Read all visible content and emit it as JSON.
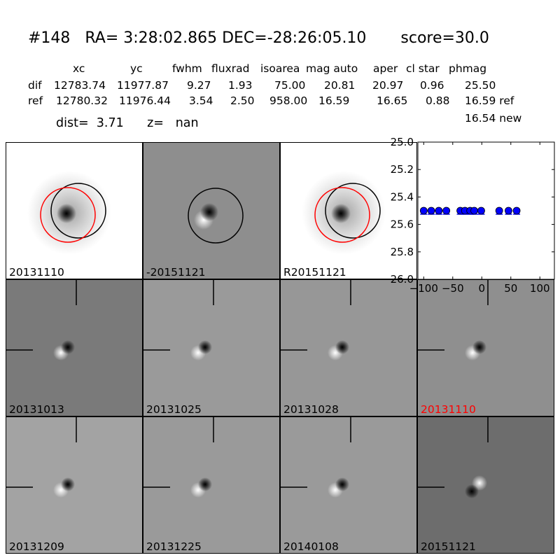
{
  "header": {
    "title": "#148   RA= 3:28:02.865 DEC=-28:26:05.10       score=30.0",
    "columns": [
      "xc",
      "yc",
      "fwhm",
      "fluxrad",
      "isoarea",
      "mag auto",
      "aper",
      "cl star",
      "phmag"
    ],
    "dif_row": {
      "label": "dif",
      "values": [
        "12783.74",
        "11977.87",
        "9.27",
        "1.93",
        "75.00",
        "20.81",
        "20.97",
        "0.96",
        "25.50"
      ]
    },
    "ref_row": {
      "label": "ref",
      "values": [
        "12780.32",
        "11976.44",
        "3.54",
        "2.50",
        "958.00",
        "16.59",
        "16.65",
        "0.88",
        "16.59 ref"
      ]
    },
    "phmag_new": "16.54 new",
    "dist_label": "dist=",
    "dist_value": "3.71",
    "z_label": "z=",
    "z_value": "nan"
  },
  "panels": [
    {
      "label": "20131110",
      "kind": "ref",
      "bg": "#ffffff",
      "label_color": "#000000"
    },
    {
      "label": "-20151121",
      "kind": "dif",
      "bg": "#8e8e8e",
      "label_color": "#000000"
    },
    {
      "label": "R20151121",
      "kind": "ref2",
      "bg": "#ffffff",
      "label_color": "#000000"
    },
    {
      "label": "20131013",
      "kind": "cut",
      "bg": "#7a7a7a",
      "label_color": "#000000"
    },
    {
      "label": "20131025",
      "kind": "cut",
      "bg": "#9a9a9a",
      "label_color": "#000000"
    },
    {
      "label": "20131028",
      "kind": "cut",
      "bg": "#979797",
      "label_color": "#000000"
    },
    {
      "label": "20131110",
      "kind": "cut",
      "bg": "#8f8f8f",
      "label_color": "#ff0000"
    },
    {
      "label": "20131209",
      "kind": "cut",
      "bg": "#a3a3a3",
      "label_color": "#000000"
    },
    {
      "label": "20131225",
      "kind": "cut",
      "bg": "#9a9a9a",
      "label_color": "#000000"
    },
    {
      "label": "20140108",
      "kind": "cut",
      "bg": "#9a9a9a",
      "label_color": "#000000"
    },
    {
      "label": "20151121",
      "kind": "cutinv",
      "bg": "#6d6d6d",
      "label_color": "#000000"
    }
  ],
  "chart_data": {
    "type": "scatter",
    "xlim": [
      -110,
      125
    ],
    "ylim": [
      26.0,
      25.0
    ],
    "xticks": [
      "−100",
      "−50",
      "0",
      "50",
      "100"
    ],
    "xtick_values": [
      -100,
      -50,
      0,
      50,
      100
    ],
    "yticks": [
      "25.0",
      "25.2",
      "25.4",
      "25.6",
      "25.8",
      "26.0"
    ],
    "ytick_values": [
      25.0,
      25.2,
      25.4,
      25.6,
      25.8,
      26.0
    ],
    "series": [
      {
        "color": "#0000ff",
        "x": [
          -100,
          -87,
          -74,
          -61,
          -37,
          -29,
          -20,
          -13,
          -1,
          30,
          46,
          60
        ],
        "y": [
          25.5,
          25.5,
          25.5,
          25.5,
          25.5,
          25.5,
          25.5,
          25.5,
          25.5,
          25.5,
          25.5,
          25.5
        ]
      }
    ]
  }
}
